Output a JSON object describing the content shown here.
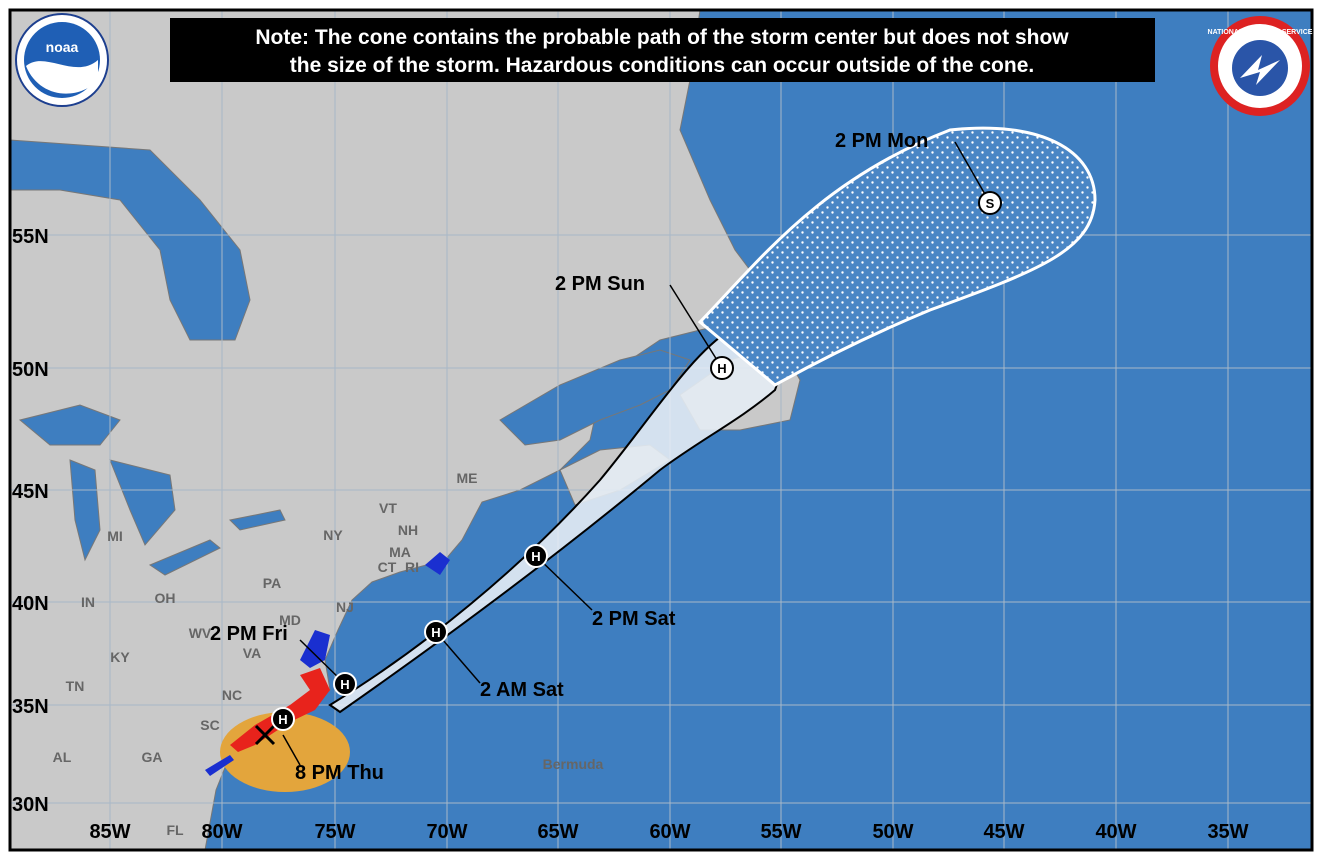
{
  "note": {
    "line1": "Note: The cone contains the probable path of the storm center but does not show",
    "line2": "the size of the storm. Hazardous conditions can occur outside of the cone."
  },
  "logos": {
    "noaa": "noaa",
    "nws": "NATIONAL WEATHER SERVICE"
  },
  "longitude_labels": [
    "85W",
    "80W",
    "75W",
    "70W",
    "65W",
    "60W",
    "55W",
    "50W",
    "45W",
    "40W",
    "35W"
  ],
  "latitude_labels": [
    "55N",
    "50N",
    "45N",
    "40N",
    "35N",
    "30N"
  ],
  "forecast_labels": [
    "8 PM Thu",
    "2 PM Fri",
    "2 AM Sat",
    "2 PM Sat",
    "2 PM Sun",
    "2 PM Mon"
  ],
  "markers": [
    "H",
    "H",
    "H",
    "H",
    "H",
    "S"
  ],
  "region_labels": [
    "MI",
    "OH",
    "IN",
    "KY",
    "TN",
    "AL",
    "GA",
    "SC",
    "NC",
    "VA",
    "WV",
    "PA",
    "NY",
    "VT",
    "NH",
    "MA",
    "CT",
    "RI",
    "ME",
    "MD",
    "NJ",
    "FL",
    "Bermuda"
  ]
}
